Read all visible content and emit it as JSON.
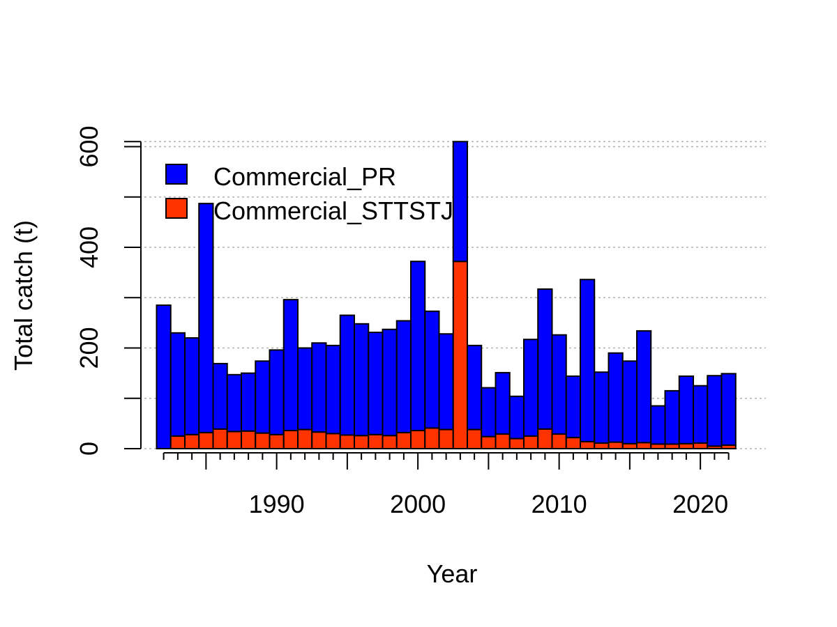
{
  "chart_data": {
    "type": "bar",
    "stacked": true,
    "title": "",
    "xlabel": "Year",
    "ylabel": "Total catch (t)",
    "xlim": [
      1981,
      2023
    ],
    "ylim": [
      0,
      610
    ],
    "xticks_labeled": [
      "1990",
      "2000",
      "2010",
      "2020"
    ],
    "yticks": [
      "0",
      "200",
      "400",
      "600"
    ],
    "grid": "horizontal dotted",
    "legend_position": "top-left",
    "x": [
      1982,
      1983,
      1984,
      1985,
      1986,
      1987,
      1988,
      1989,
      1990,
      1991,
      1992,
      1993,
      1994,
      1995,
      1996,
      1997,
      1998,
      1999,
      2000,
      2001,
      2002,
      2003,
      2004,
      2005,
      2006,
      2007,
      2008,
      2009,
      2010,
      2011,
      2012,
      2013,
      2014,
      2015,
      2016,
      2017,
      2018,
      2019,
      2020,
      2021,
      2022
    ],
    "series": [
      {
        "name": "Commercial_PR",
        "color": "#0000FF",
        "values": [
          285,
          205,
          192,
          455,
          130,
          113,
          115,
          143,
          168,
          260,
          162,
          177,
          175,
          238,
          222,
          203,
          211,
          222,
          336,
          232,
          190,
          238,
          167,
          97,
          122,
          84,
          192,
          278,
          197,
          122,
          322,
          141,
          177,
          164,
          222,
          76,
          106,
          134,
          114,
          140,
          142
        ]
      },
      {
        "name": "Commercial_STTSTJ",
        "color": "#FF3300",
        "values": [
          0,
          25,
          28,
          32,
          39,
          34,
          35,
          31,
          28,
          36,
          38,
          33,
          30,
          27,
          26,
          28,
          26,
          32,
          36,
          41,
          38,
          372,
          38,
          24,
          29,
          20,
          25,
          39,
          29,
          22,
          14,
          11,
          13,
          10,
          12,
          9,
          9,
          10,
          11,
          5,
          7
        ]
      }
    ]
  }
}
